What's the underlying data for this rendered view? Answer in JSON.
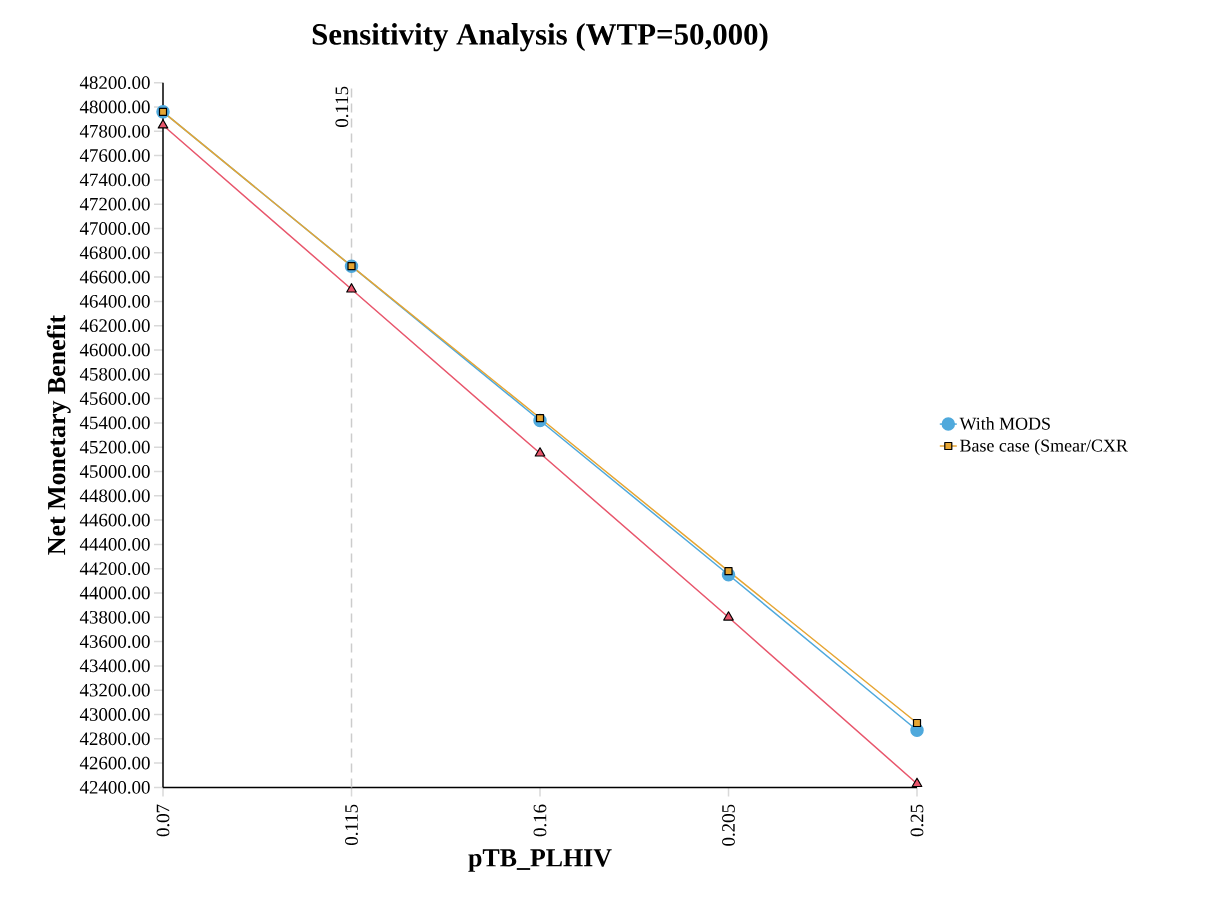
{
  "chart_data": {
    "type": "line",
    "title": "Sensitivity Analysis (WTP=50,000)",
    "xlabel": "pTB_PLHIV",
    "ylabel": "Net Monetary Benefit",
    "x": [
      0.07,
      0.115,
      0.16,
      0.205,
      0.25
    ],
    "xlim": [
      0.07,
      0.25
    ],
    "xticks": [
      0.07,
      0.115,
      0.16,
      0.205,
      0.25
    ],
    "ylim": [
      42400,
      48200
    ],
    "yticks": [
      {
        "value": 42400,
        "label": "42400.00"
      },
      {
        "value": 42600,
        "label": "42600.00"
      },
      {
        "value": 42800,
        "label": "42800.00"
      },
      {
        "value": 43000,
        "label": "43000.00"
      },
      {
        "value": 43200,
        "label": "43200.00"
      },
      {
        "value": 43400,
        "label": "43400.00"
      },
      {
        "value": 43600,
        "label": "43600.00"
      },
      {
        "value": 43800,
        "label": "43800.00"
      },
      {
        "value": 44000,
        "label": "44000.00"
      },
      {
        "value": 44200,
        "label": "44200.00"
      },
      {
        "value": 44400,
        "label": "44400.00"
      },
      {
        "value": 44600,
        "label": "44600.00"
      },
      {
        "value": 44800,
        "label": "44800.00"
      },
      {
        "value": 45000,
        "label": "45000.00"
      },
      {
        "value": 45200,
        "label": "45200.00"
      },
      {
        "value": 45400,
        "label": "45400.00"
      },
      {
        "value": 45600,
        "label": "45600.00"
      },
      {
        "value": 45800,
        "label": "45800.00"
      },
      {
        "value": 46000,
        "label": "46000.00"
      },
      {
        "value": 46200,
        "label": "46200.00"
      },
      {
        "value": 46400,
        "label": "46400.00"
      },
      {
        "value": 46600,
        "label": "46600.00"
      },
      {
        "value": 46800,
        "label": "46800.00"
      },
      {
        "value": 47000,
        "label": "47000.00"
      },
      {
        "value": 47200,
        "label": "47200.00"
      },
      {
        "value": 47400,
        "label": "47400.00"
      },
      {
        "value": 47600,
        "label": "47600.00"
      },
      {
        "value": 47800,
        "label": "47800.00"
      },
      {
        "value": 48000,
        "label": "48000.00"
      },
      {
        "value": 48200,
        "label": "48200.00"
      }
    ],
    "series": [
      {
        "name": "With MODS",
        "color": "#4fa9dc",
        "marker": "circle",
        "values": [
          47960,
          46690,
          45420,
          44150,
          42870
        ]
      },
      {
        "color": "#e8566c",
        "marker": "triangle",
        "values": [
          47850,
          46500,
          45150,
          43800,
          42430
        ]
      },
      {
        "name": "Base case (Smear/CXR",
        "color": "#e6a532",
        "marker": "square",
        "values": [
          47960,
          46690,
          45440,
          44180,
          42930
        ]
      }
    ],
    "ref_lines": [
      {
        "axis": "x",
        "value": 0.115,
        "label": "0.115",
        "color": "#cccccc",
        "line_style": "dashed"
      }
    ],
    "legend": "right"
  }
}
